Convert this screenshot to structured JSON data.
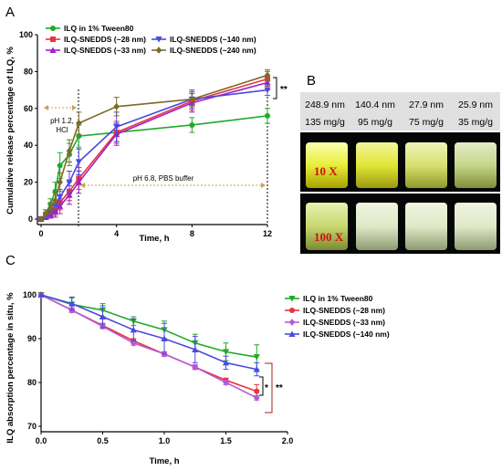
{
  "panel_a": {
    "letter": "A",
    "legend": [
      {
        "label": "ILQ in 1% Tween80",
        "color": "#1faa2a",
        "marker": "circle"
      },
      {
        "label": "ILQ-SNEDDS (~28 nm)",
        "color": "#e8353a",
        "marker": "square"
      },
      {
        "label": "ILQ-SNEDDS (~33 nm)",
        "color": "#a020c8",
        "marker": "triangle-up"
      },
      {
        "label": "ILQ-SNEDDS (~140 nm)",
        "color": "#4a4ae0",
        "marker": "triangle-down"
      },
      {
        "label": "ILQ-SNEDDS (~240 nm)",
        "color": "#7d6b2a",
        "marker": "diamond"
      }
    ],
    "annotations": {
      "ph12_line1": "pH 1.2,",
      "ph12_line2": "HCl",
      "ph68": "pH 6.8, PBS buffer",
      "significance": "**"
    }
  },
  "panel_b": {
    "letter": "B",
    "sizes": [
      "248.9 nm",
      "140.4 nm",
      "27.9 nm",
      "25.9 nm"
    ],
    "doses": [
      "135 mg/g",
      "95 mg/g",
      "75 mg/g",
      "35 mg/g"
    ],
    "dilution_top": "10 X",
    "dilution_bottom": "100 X"
  },
  "panel_c": {
    "letter": "C",
    "legend": [
      {
        "label": "ILQ in 1% Tween80",
        "color": "#1faa2a",
        "marker": "triangle-down"
      },
      {
        "label": "ILQ-SNEDDS (~28 nm)",
        "color": "#e8353a",
        "marker": "circle"
      },
      {
        "label": "ILQ-SNEDDS (~33 nm)",
        "color": "#b25ad8",
        "marker": "diamond"
      },
      {
        "label": "ILQ-SNEDDS (~140 nm)",
        "color": "#4a4ae0",
        "marker": "triangle-up"
      }
    ],
    "annotations": {
      "sig1": "*",
      "sig2": "**"
    }
  },
  "chart_data": [
    {
      "type": "line",
      "xlabel": "Time, h",
      "ylabel": "Cumulative release percentage of ILQ, %",
      "xlim": [
        0,
        12
      ],
      "ylim": [
        0,
        100
      ],
      "xticks": [
        0,
        4,
        8,
        12
      ],
      "yticks": [
        0,
        20,
        40,
        60,
        80,
        100
      ],
      "grid": false,
      "legend_position": "top-left",
      "series": [
        {
          "name": "ILQ in 1% Tween80",
          "x": [
            0,
            0.25,
            0.5,
            0.75,
            1,
            1.5,
            2,
            4,
            8,
            12
          ],
          "values": [
            0,
            3,
            8,
            15,
            29,
            35,
            45,
            47,
            51,
            56
          ],
          "errors": [
            0,
            2,
            3,
            5,
            7,
            6,
            6,
            5,
            4,
            4
          ]
        },
        {
          "name": "ILQ-SNEDDS (~28 nm)",
          "x": [
            0,
            0.25,
            0.5,
            0.75,
            1,
            1.5,
            2,
            4,
            8,
            12
          ],
          "values": [
            0,
            1.5,
            3,
            5,
            9,
            15,
            22,
            47,
            64,
            76
          ],
          "errors": [
            0,
            1.5,
            2,
            3,
            4,
            5,
            6,
            6,
            5,
            4
          ]
        },
        {
          "name": "ILQ-SNEDDS (~33 nm)",
          "x": [
            0,
            0.25,
            0.5,
            0.75,
            1,
            1.5,
            2,
            4,
            8,
            12
          ],
          "values": [
            0,
            1,
            2.5,
            4,
            7,
            13,
            20,
            46,
            63,
            74
          ],
          "errors": [
            0,
            1,
            2,
            3,
            4,
            5,
            6,
            6,
            5,
            4
          ]
        },
        {
          "name": "ILQ-SNEDDS (~140 nm)",
          "x": [
            0,
            0.25,
            0.5,
            0.75,
            1,
            1.5,
            2,
            4,
            8,
            12
          ],
          "values": [
            0,
            2,
            4,
            7,
            12,
            20,
            31,
            50,
            65,
            70
          ],
          "errors": [
            0,
            1.5,
            2,
            3,
            4,
            6,
            7,
            8,
            5,
            3
          ]
        },
        {
          "name": "ILQ-SNEDDS (~240 nm)",
          "x": [
            0,
            0.25,
            0.5,
            0.75,
            1,
            1.5,
            2,
            4,
            8,
            12
          ],
          "values": [
            0,
            3,
            6,
            10,
            20,
            37,
            52,
            61,
            65,
            78
          ],
          "errors": [
            0,
            2,
            3,
            4,
            5,
            6,
            6,
            5,
            4,
            3
          ]
        }
      ]
    },
    {
      "type": "line",
      "xlabel": "Time, h",
      "ylabel": "ILQ absorption percentage in situ, %",
      "xlim": [
        0,
        2
      ],
      "ylim": [
        70,
        100
      ],
      "xticks": [
        0.0,
        0.5,
        1.0,
        1.5,
        2.0
      ],
      "yticks": [
        70,
        80,
        90,
        100
      ],
      "grid": false,
      "legend_position": "right",
      "series": [
        {
          "name": "ILQ in 1% Tween80",
          "x": [
            0,
            0.25,
            0.5,
            0.75,
            1.0,
            1.25,
            1.5,
            1.75
          ],
          "values": [
            100,
            97.8,
            96.5,
            94.0,
            92.0,
            89.0,
            87.0,
            85.8
          ],
          "errors": [
            0,
            1.5,
            1.5,
            1.0,
            2.0,
            2.0,
            2.0,
            2.8
          ]
        },
        {
          "name": "ILQ-SNEDDS (~28 nm)",
          "x": [
            0,
            0.25,
            0.5,
            0.75,
            1.0,
            1.25,
            1.5,
            1.75
          ],
          "values": [
            100,
            96.5,
            93.0,
            89.5,
            86.5,
            83.5,
            80.5,
            78.0
          ],
          "errors": [
            0,
            0.5,
            0.5,
            0.5,
            0.5,
            0.5,
            0.5,
            1.5
          ]
        },
        {
          "name": "ILQ-SNEDDS (~33 nm)",
          "x": [
            0,
            0.25,
            0.5,
            0.75,
            1.0,
            1.25,
            1.5,
            1.75
          ],
          "values": [
            100,
            96.5,
            92.8,
            89.0,
            86.5,
            83.5,
            80.0,
            76.5
          ],
          "errors": [
            0,
            0.5,
            0.5,
            0.5,
            0.5,
            0.5,
            0.5,
            0.5
          ]
        },
        {
          "name": "ILQ-SNEDDS (~140 nm)",
          "x": [
            0,
            0.25,
            0.5,
            0.75,
            1.0,
            1.25,
            1.5,
            1.75
          ],
          "values": [
            100,
            98.0,
            95.0,
            92.0,
            90.0,
            87.5,
            84.5,
            83.0
          ],
          "errors": [
            0,
            1.5,
            2.5,
            2.5,
            3.5,
            3.0,
            1.5,
            1.5
          ]
        }
      ]
    }
  ]
}
